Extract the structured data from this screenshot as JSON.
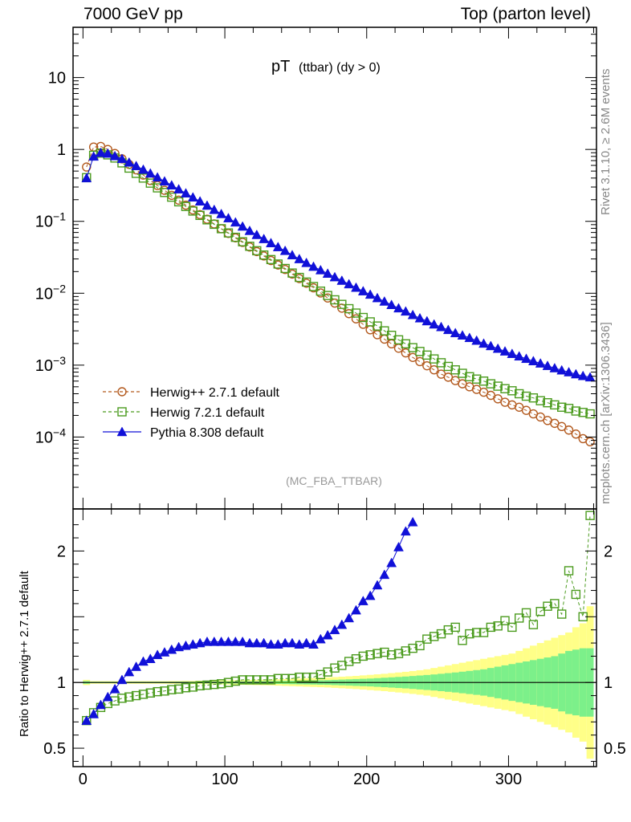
{
  "header": {
    "left": "7000 GeV pp",
    "right": "Top (parton level)"
  },
  "side": {
    "rivet": "Rivet 3.1.10, ≥ 2.6M events",
    "mcplots": "mcplots.cern.ch [arXiv:1306.3436]"
  },
  "plot": {
    "title_main": "pT",
    "title_sub": "(ttbar) (dy > 0)",
    "analysis": "(MC_FBA_TTBAR)",
    "ratio_ylabel": "Ratio to Herwig++ 2.7.1 default"
  },
  "colors": {
    "herwigpp": "#b35a1f",
    "herwig7": "#4b9b1e",
    "pythia": "#1010d8",
    "band_stat": "#7cf08a",
    "band_total": "#ffff88"
  },
  "chart_data": [
    {
      "type": "scatter",
      "yscale": "log",
      "xlim": [
        -7,
        362
      ],
      "ylim": [
        1e-05,
        50
      ],
      "yticks": [
        "10",
        "1",
        "10^-1",
        "10^-2",
        "10^-3",
        "10^-4"
      ],
      "xticks": [],
      "legend": "bottom-left",
      "series": [
        {
          "name": "Herwig++ 2.7.1 default",
          "marker": "open-circle",
          "line": "dashed",
          "x": [
            2.5,
            7.5,
            12.5,
            17.5,
            22.5,
            27.5,
            32.5,
            37.5,
            42.5,
            47.5,
            52.5,
            57.5,
            62.5,
            67.5,
            72.5,
            77.5,
            82.5,
            87.5,
            92.5,
            97.5,
            102.5,
            107.5,
            112.5,
            117.5,
            122.5,
            127.5,
            132.5,
            137.5,
            142.5,
            147.5,
            152.5,
            157.5,
            162.5,
            167.5,
            172.5,
            177.5,
            182.5,
            187.5,
            192.5,
            197.5,
            202.5,
            207.5,
            212.5,
            217.5,
            222.5,
            227.5,
            232.5,
            237.5,
            242.5,
            247.5,
            252.5,
            257.5,
            262.5,
            267.5,
            272.5,
            277.5,
            282.5,
            287.5,
            292.5,
            297.5,
            302.5,
            307.5,
            312.5,
            317.5,
            322.5,
            327.5,
            332.5,
            337.5,
            342.5,
            347.5,
            352.5,
            357.5
          ],
          "y": [
            0.57,
            1.08,
            1.1,
            1.0,
            0.88,
            0.74,
            0.62,
            0.52,
            0.44,
            0.37,
            0.315,
            0.27,
            0.23,
            0.197,
            0.168,
            0.144,
            0.124,
            0.107,
            0.092,
            0.079,
            0.068,
            0.059,
            0.051,
            0.044,
            0.038,
            0.033,
            0.0285,
            0.0247,
            0.0214,
            0.0185,
            0.016,
            0.0138,
            0.0119,
            0.0101,
            0.0086,
            0.0073,
            0.0062,
            0.0052,
            0.0044,
            0.0037,
            0.0031,
            0.00265,
            0.0023,
            0.00198,
            0.00172,
            0.00148,
            0.00128,
            0.00112,
            0.00098,
            0.00086,
            0.00075,
            0.00068,
            0.00061,
            0.00055,
            0.0005,
            0.00046,
            0.00042,
            0.00038,
            0.00034,
            0.000305,
            0.00028,
            0.00026,
            0.000235,
            0.00021,
            0.00019,
            0.00017,
            0.000155,
            0.00014,
            0.000125,
            0.00011,
            9.5e-05,
            8.6e-05
          ]
        },
        {
          "name": "Herwig 7.2.1 default",
          "marker": "open-square",
          "line": "dashed",
          "x": [
            2.5,
            7.5,
            12.5,
            17.5,
            22.5,
            27.5,
            32.5,
            37.5,
            42.5,
            47.5,
            52.5,
            57.5,
            62.5,
            67.5,
            72.5,
            77.5,
            82.5,
            87.5,
            92.5,
            97.5,
            102.5,
            107.5,
            112.5,
            117.5,
            122.5,
            127.5,
            132.5,
            137.5,
            142.5,
            147.5,
            152.5,
            157.5,
            162.5,
            167.5,
            172.5,
            177.5,
            182.5,
            187.5,
            192.5,
            197.5,
            202.5,
            207.5,
            212.5,
            217.5,
            222.5,
            227.5,
            232.5,
            237.5,
            242.5,
            247.5,
            252.5,
            257.5,
            262.5,
            267.5,
            272.5,
            277.5,
            282.5,
            287.5,
            292.5,
            297.5,
            302.5,
            307.5,
            312.5,
            317.5,
            322.5,
            327.5,
            332.5,
            337.5,
            342.5,
            347.5,
            352.5,
            357.5
          ],
          "y": [
            0.405,
            0.83,
            0.89,
            0.84,
            0.76,
            0.65,
            0.55,
            0.465,
            0.4,
            0.34,
            0.292,
            0.252,
            0.217,
            0.187,
            0.161,
            0.139,
            0.121,
            0.105,
            0.091,
            0.079,
            0.069,
            0.06,
            0.052,
            0.045,
            0.039,
            0.034,
            0.0294,
            0.0255,
            0.0221,
            0.0191,
            0.0166,
            0.0143,
            0.0124,
            0.0107,
            0.0093,
            0.0081,
            0.007,
            0.0061,
            0.0053,
            0.0046,
            0.004,
            0.0035,
            0.003,
            0.0026,
            0.00225,
            0.00198,
            0.00175,
            0.00155,
            0.00138,
            0.00122,
            0.00108,
            0.00096,
            0.00086,
            0.00077,
            0.00069,
            0.00064,
            0.0006,
            0.00055,
            0.00051,
            0.00047,
            0.00044,
            0.0004,
            0.00037,
            0.00035,
            0.00032,
            0.0003,
            0.00028,
            0.00026,
            0.00025,
            0.00023,
            0.00022,
            0.00021
          ]
        },
        {
          "name": "Pythia 8.308 default",
          "marker": "filled-triangle",
          "line": "solid",
          "x": [
            2.5,
            7.5,
            12.5,
            17.5,
            22.5,
            27.5,
            32.5,
            37.5,
            42.5,
            47.5,
            52.5,
            57.5,
            62.5,
            67.5,
            72.5,
            77.5,
            82.5,
            87.5,
            92.5,
            97.5,
            102.5,
            107.5,
            112.5,
            117.5,
            122.5,
            127.5,
            132.5,
            137.5,
            142.5,
            147.5,
            152.5,
            157.5,
            162.5,
            167.5,
            172.5,
            177.5,
            182.5,
            187.5,
            192.5,
            197.5,
            202.5,
            207.5,
            212.5,
            217.5,
            222.5,
            227.5,
            232.5,
            237.5,
            242.5,
            247.5,
            252.5,
            257.5,
            262.5,
            267.5,
            272.5,
            277.5,
            282.5,
            287.5,
            292.5,
            297.5,
            302.5,
            307.5,
            312.5,
            317.5,
            322.5,
            327.5,
            332.5,
            337.5,
            342.5,
            347.5,
            352.5,
            357.5
          ],
          "y": [
            0.4,
            0.8,
            0.9,
            0.88,
            0.81,
            0.74,
            0.66,
            0.59,
            0.525,
            0.465,
            0.41,
            0.361,
            0.318,
            0.28,
            0.246,
            0.216,
            0.19,
            0.166,
            0.145,
            0.127,
            0.111,
            0.097,
            0.085,
            0.074,
            0.065,
            0.057,
            0.05,
            0.044,
            0.039,
            0.034,
            0.03,
            0.0265,
            0.0235,
            0.021,
            0.0188,
            0.0168,
            0.015,
            0.0134,
            0.012,
            0.0107,
            0.0096,
            0.0086,
            0.0077,
            0.0069,
            0.0062,
            0.0056,
            0.005,
            0.0045,
            0.0041,
            0.0037,
            0.0034,
            0.0031,
            0.0028,
            0.0026,
            0.0024,
            0.0022,
            0.002,
            0.00185,
            0.0017,
            0.00156,
            0.00144,
            0.00133,
            0.00123,
            0.00114,
            0.00106,
            0.00098,
            0.00091,
            0.00085,
            0.0008,
            0.00075,
            0.00071,
            0.00068
          ]
        }
      ]
    },
    {
      "type": "scatter",
      "ylabel": "Ratio to Herwig++ 2.7.1 default",
      "xlim": [
        -7,
        362
      ],
      "ylim": [
        0.36,
        2.32
      ],
      "yticks": [
        0.5,
        1,
        2
      ],
      "xticks": [
        0,
        100,
        200,
        300
      ],
      "bands": {
        "x_edges": [
          0,
          5,
          10,
          15,
          20,
          25,
          30,
          35,
          40,
          45,
          50,
          55,
          60,
          65,
          70,
          75,
          80,
          85,
          90,
          95,
          100,
          105,
          110,
          115,
          120,
          125,
          130,
          135,
          140,
          145,
          150,
          155,
          160,
          165,
          170,
          175,
          180,
          185,
          190,
          195,
          200,
          205,
          210,
          215,
          220,
          225,
          230,
          235,
          240,
          245,
          250,
          255,
          260,
          265,
          270,
          275,
          280,
          285,
          290,
          295,
          300,
          305,
          310,
          315,
          320,
          325,
          330,
          335,
          340,
          345,
          350,
          355,
          360
        ],
        "stat_halfwidth": [
          0.01,
          0.005,
          0.005,
          0.005,
          0.005,
          0.005,
          0.005,
          0.005,
          0.005,
          0.005,
          0.005,
          0.005,
          0.005,
          0.006,
          0.006,
          0.006,
          0.006,
          0.007,
          0.007,
          0.007,
          0.008,
          0.008,
          0.008,
          0.009,
          0.009,
          0.01,
          0.01,
          0.011,
          0.012,
          0.013,
          0.014,
          0.015,
          0.016,
          0.017,
          0.018,
          0.02,
          0.022,
          0.024,
          0.026,
          0.028,
          0.03,
          0.033,
          0.036,
          0.039,
          0.042,
          0.045,
          0.049,
          0.053,
          0.057,
          0.061,
          0.066,
          0.071,
          0.076,
          0.082,
          0.088,
          0.094,
          0.1,
          0.11,
          0.12,
          0.13,
          0.14,
          0.15,
          0.16,
          0.17,
          0.18,
          0.19,
          0.2,
          0.22,
          0.24,
          0.25,
          0.26,
          0.26
        ],
        "total_halfwidth": [
          0.02,
          0.01,
          0.01,
          0.01,
          0.01,
          0.01,
          0.01,
          0.01,
          0.01,
          0.01,
          0.01,
          0.01,
          0.011,
          0.011,
          0.012,
          0.012,
          0.013,
          0.013,
          0.014,
          0.015,
          0.016,
          0.017,
          0.018,
          0.019,
          0.02,
          0.021,
          0.022,
          0.024,
          0.026,
          0.028,
          0.03,
          0.032,
          0.034,
          0.036,
          0.038,
          0.041,
          0.044,
          0.047,
          0.05,
          0.054,
          0.058,
          0.062,
          0.066,
          0.071,
          0.076,
          0.081,
          0.087,
          0.093,
          0.1,
          0.11,
          0.12,
          0.13,
          0.14,
          0.15,
          0.16,
          0.17,
          0.18,
          0.19,
          0.2,
          0.21,
          0.22,
          0.24,
          0.26,
          0.28,
          0.3,
          0.32,
          0.34,
          0.36,
          0.38,
          0.42,
          0.45,
          0.58
        ]
      },
      "series": [
        {
          "name": "Herwig 7.2.1 default",
          "marker": "open-square",
          "line": "dashed",
          "x": [
            2.5,
            7.5,
            12.5,
            17.5,
            22.5,
            27.5,
            32.5,
            37.5,
            42.5,
            47.5,
            52.5,
            57.5,
            62.5,
            67.5,
            72.5,
            77.5,
            82.5,
            87.5,
            92.5,
            97.5,
            102.5,
            107.5,
            112.5,
            117.5,
            122.5,
            127.5,
            132.5,
            137.5,
            142.5,
            147.5,
            152.5,
            157.5,
            162.5,
            167.5,
            172.5,
            177.5,
            182.5,
            187.5,
            192.5,
            197.5,
            202.5,
            207.5,
            212.5,
            217.5,
            222.5,
            227.5,
            232.5,
            237.5,
            242.5,
            247.5,
            252.5,
            257.5,
            262.5,
            267.5,
            272.5,
            277.5,
            282.5,
            287.5,
            292.5,
            297.5,
            302.5,
            307.5,
            312.5,
            317.5,
            322.5,
            327.5,
            332.5,
            337.5,
            342.5,
            347.5,
            352.5,
            357.5
          ],
          "y": [
            0.71,
            0.77,
            0.81,
            0.84,
            0.86,
            0.88,
            0.89,
            0.9,
            0.91,
            0.92,
            0.93,
            0.935,
            0.945,
            0.95,
            0.96,
            0.965,
            0.975,
            0.98,
            0.985,
            0.99,
            1.0,
            1.01,
            1.02,
            1.02,
            1.02,
            1.02,
            1.02,
            1.03,
            1.03,
            1.03,
            1.04,
            1.04,
            1.04,
            1.06,
            1.08,
            1.11,
            1.13,
            1.16,
            1.18,
            1.2,
            1.21,
            1.22,
            1.23,
            1.21,
            1.22,
            1.24,
            1.26,
            1.28,
            1.33,
            1.35,
            1.37,
            1.4,
            1.42,
            1.32,
            1.37,
            1.38,
            1.38,
            1.42,
            1.43,
            1.47,
            1.42,
            1.49,
            1.53,
            1.44,
            1.54,
            1.58,
            1.6,
            1.52,
            1.85,
            1.67,
            1.5,
            2.27
          ],
          "y_highlight": [
            0.71,
            0.77,
            0.81,
            0.84,
            0.86,
            0.88,
            0.89,
            0.9,
            0.91,
            0.92,
            0.93,
            0.935,
            0.945,
            0.95,
            0.96,
            0.965,
            0.975,
            0.98,
            0.985,
            0.99,
            1.0,
            1.01,
            1.02,
            1.02,
            1.02,
            1.02,
            1.02,
            1.03,
            1.03,
            1.03,
            1.04,
            1.04,
            1.04,
            1.06,
            1.08,
            1.11,
            1.13,
            1.16,
            1.18,
            1.2,
            1.21,
            1.22,
            1.23,
            1.21,
            1.22,
            1.24,
            1.26,
            1.28,
            1.33,
            1.35,
            1.37,
            1.4,
            1.42,
            1.32,
            1.37,
            1.38,
            1.38,
            1.42,
            1.43,
            1.47,
            1.42,
            1.49,
            1.53,
            1.44,
            1.54,
            1.58,
            1.6,
            1.52,
            1.85,
            1.67,
            1.5,
            2.27
          ]
        },
        {
          "name": "Pythia 8.308 default",
          "marker": "filled-triangle",
          "line": "solid",
          "x": [
            2.5,
            7.5,
            12.5,
            17.5,
            22.5,
            27.5,
            32.5,
            37.5,
            42.5,
            47.5,
            52.5,
            57.5,
            62.5,
            67.5,
            72.5,
            77.5,
            82.5,
            87.5,
            92.5,
            97.5,
            102.5,
            107.5,
            112.5,
            117.5,
            122.5,
            127.5,
            132.5,
            137.5,
            142.5,
            147.5,
            152.5,
            157.5,
            162.5,
            167.5,
            172.5,
            177.5,
            182.5,
            187.5,
            192.5,
            197.5,
            202.5,
            207.5,
            212.5,
            217.5,
            222.5,
            227.5,
            232.5
          ],
          "y": [
            0.71,
            0.76,
            0.83,
            0.89,
            0.95,
            1.02,
            1.08,
            1.12,
            1.16,
            1.18,
            1.21,
            1.23,
            1.25,
            1.27,
            1.28,
            1.29,
            1.3,
            1.31,
            1.31,
            1.31,
            1.31,
            1.31,
            1.31,
            1.3,
            1.3,
            1.3,
            1.29,
            1.29,
            1.3,
            1.3,
            1.29,
            1.3,
            1.29,
            1.33,
            1.36,
            1.4,
            1.44,
            1.49,
            1.55,
            1.62,
            1.66,
            1.74,
            1.82,
            1.91,
            2.03,
            2.15,
            2.22
          ]
        }
      ]
    }
  ]
}
